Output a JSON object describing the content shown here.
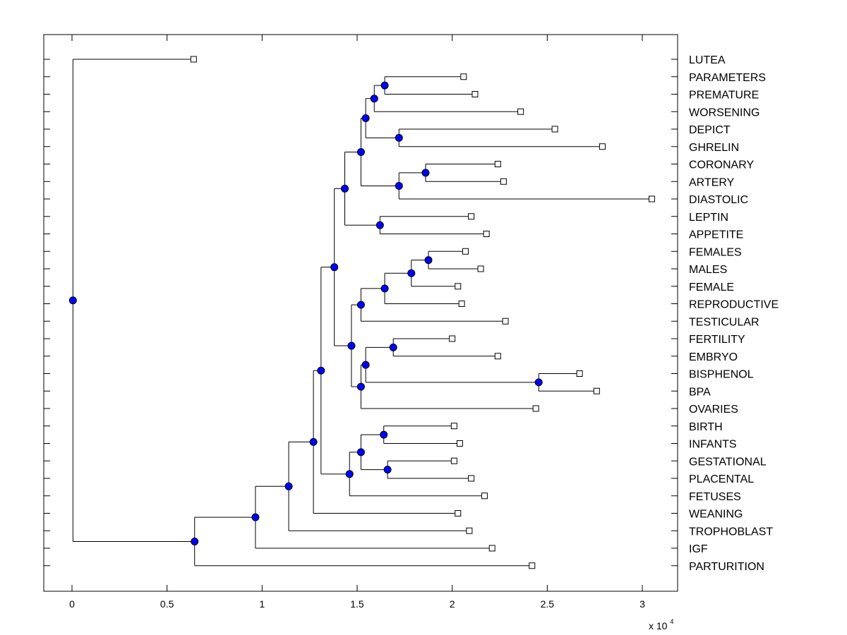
{
  "chart_data": {
    "type": "dendrogram",
    "title": "",
    "xlabel": "",
    "ylabel": "",
    "xlim": [
      -0.15,
      3.2
    ],
    "x_ticks": [
      0,
      0.5,
      1,
      1.5,
      2,
      2.5,
      3
    ],
    "x_tick_labels": [
      "0",
      "0.5",
      "1",
      "1.5",
      "2",
      "2.5",
      "3"
    ],
    "x_multiplier_label": "x 10",
    "x_multiplier_exponent": "4",
    "grid": false,
    "leaf_marker_color": "#ffffff",
    "node_marker_color": "#0000ff",
    "line_color": "#000000",
    "leaves": [
      {
        "label": "LUTEA",
        "x": 0.64
      },
      {
        "label": "PARAMETERS",
        "x": 2.06
      },
      {
        "label": "PREMATURE",
        "x": 2.12
      },
      {
        "label": "WORSENING",
        "x": 2.36
      },
      {
        "label": "DEPICT",
        "x": 2.54
      },
      {
        "label": "GHRELIN",
        "x": 2.79
      },
      {
        "label": "CORONARY",
        "x": 2.24
      },
      {
        "label": "ARTERY",
        "x": 2.27
      },
      {
        "label": "DIASTOLIC",
        "x": 3.05
      },
      {
        "label": "LEPTIN",
        "x": 2.1
      },
      {
        "label": "APPETITE",
        "x": 2.18
      },
      {
        "label": "FEMALES",
        "x": 2.07
      },
      {
        "label": "MALES",
        "x": 2.15
      },
      {
        "label": "FEMALE",
        "x": 2.03
      },
      {
        "label": "REPRODUCTIVE",
        "x": 2.05
      },
      {
        "label": "TESTICULAR",
        "x": 2.28
      },
      {
        "label": "FERTILITY",
        "x": 2.0
      },
      {
        "label": "EMBRYO",
        "x": 2.24
      },
      {
        "label": "BISPHENOL",
        "x": 2.67
      },
      {
        "label": "BPA",
        "x": 2.76
      },
      {
        "label": "OVARIES",
        "x": 2.44
      },
      {
        "label": "BIRTH",
        "x": 2.01
      },
      {
        "label": "INFANTS",
        "x": 2.04
      },
      {
        "label": "GESTATIONAL",
        "x": 2.01
      },
      {
        "label": "PLACENTAL",
        "x": 2.1
      },
      {
        "label": "FETUSES",
        "x": 2.17
      },
      {
        "label": "WEANING",
        "x": 2.03
      },
      {
        "label": "TROPHOBLAST",
        "x": 2.09
      },
      {
        "label": "IGF",
        "x": 2.21
      },
      {
        "label": "PARTURITION",
        "x": 2.42
      }
    ],
    "nodes": [
      {
        "id": "P1",
        "x": 1.645,
        "children": [
          "L:PARAMETERS",
          "L:PREMATURE"
        ]
      },
      {
        "id": "P2",
        "x": 1.59,
        "children": [
          "N:P1",
          "L:WORSENING"
        ]
      },
      {
        "id": "P3",
        "x": 1.72,
        "children": [
          "L:DEPICT",
          "L:GHRELIN"
        ]
      },
      {
        "id": "P4",
        "x": 1.545,
        "children": [
          "N:P2",
          "N:P3"
        ]
      },
      {
        "id": "P5",
        "x": 1.86,
        "children": [
          "L:CORONARY",
          "L:ARTERY"
        ]
      },
      {
        "id": "P6",
        "x": 1.72,
        "children": [
          "N:P5",
          "L:DIASTOLIC"
        ]
      },
      {
        "id": "P7",
        "x": 1.52,
        "children": [
          "N:P4",
          "N:P6"
        ]
      },
      {
        "id": "P8",
        "x": 1.62,
        "children": [
          "L:LEPTIN",
          "L:APPETITE"
        ]
      },
      {
        "id": "P9",
        "x": 1.435,
        "children": [
          "N:P7",
          "N:P8"
        ]
      },
      {
        "id": "P10",
        "x": 1.875,
        "children": [
          "L:FEMALES",
          "L:MALES"
        ]
      },
      {
        "id": "P11",
        "x": 1.785,
        "children": [
          "N:P10",
          "L:FEMALE"
        ]
      },
      {
        "id": "P12",
        "x": 1.645,
        "children": [
          "N:P11",
          "L:REPRODUCTIVE"
        ]
      },
      {
        "id": "P13",
        "x": 1.52,
        "children": [
          "N:P12",
          "L:TESTICULAR"
        ]
      },
      {
        "id": "P14",
        "x": 1.69,
        "children": [
          "L:FERTILITY",
          "L:EMBRYO"
        ]
      },
      {
        "id": "P15",
        "x": 2.455,
        "children": [
          "L:BISPHENOL",
          "L:BPA"
        ]
      },
      {
        "id": "P16",
        "x": 1.545,
        "children": [
          "N:P14",
          "N:P15"
        ]
      },
      {
        "id": "P17",
        "x": 1.52,
        "children": [
          "N:P16",
          "L:OVARIES"
        ]
      },
      {
        "id": "P18",
        "x": 1.47,
        "children": [
          "N:P13",
          "N:P17"
        ]
      },
      {
        "id": "P19",
        "x": 1.38,
        "children": [
          "N:P9",
          "N:P18"
        ]
      },
      {
        "id": "P20",
        "x": 1.64,
        "children": [
          "L:BIRTH",
          "L:INFANTS"
        ]
      },
      {
        "id": "P21",
        "x": 1.66,
        "children": [
          "L:GESTATIONAL",
          "L:PLACENTAL"
        ]
      },
      {
        "id": "P22",
        "x": 1.52,
        "children": [
          "N:P20",
          "N:P21"
        ]
      },
      {
        "id": "P23",
        "x": 1.46,
        "children": [
          "N:P22",
          "L:FETUSES"
        ]
      },
      {
        "id": "P24",
        "x": 1.31,
        "children": [
          "N:P19",
          "N:P23"
        ]
      },
      {
        "id": "P25",
        "x": 1.27,
        "children": [
          "N:P24",
          "L:WEANING"
        ]
      },
      {
        "id": "P26",
        "x": 1.14,
        "children": [
          "N:P25",
          "L:TROPHOBLAST"
        ]
      },
      {
        "id": "P27",
        "x": 0.965,
        "children": [
          "N:P26",
          "L:IGF"
        ]
      },
      {
        "id": "P28",
        "x": 0.645,
        "children": [
          "N:P27",
          "L:PARTURITION"
        ]
      },
      {
        "id": "ROOT",
        "x": 0.005,
        "children": [
          "L:LUTEA",
          "N:P28"
        ]
      }
    ]
  }
}
